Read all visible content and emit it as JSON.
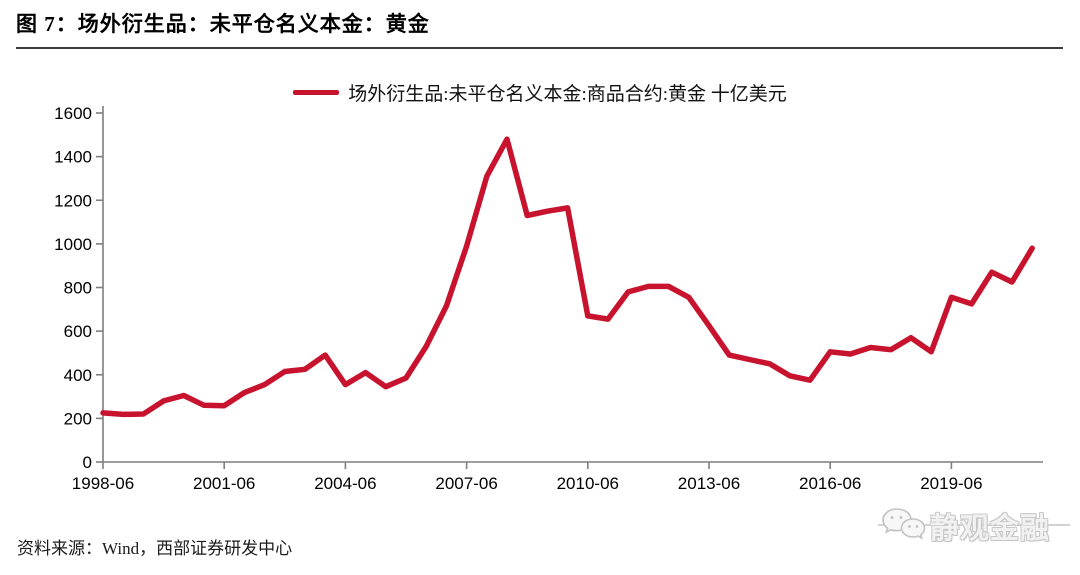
{
  "figure": {
    "title": "图 7：场外衍生品：未平仓名义本金：黄金",
    "source_note": "资料来源：Wind，西部证券研发中心",
    "watermark_text": "静观金融"
  },
  "chart_data": {
    "type": "line",
    "title": "图 7：场外衍生品：未平仓名义本金：黄金",
    "legend": "场外衍生品:未平仓名义本金:商品合约:黄金 十亿美元",
    "legend_position": "top-center",
    "unit": "十亿美元",
    "grid": false,
    "line_color": "#c8132e",
    "ylim": [
      0,
      1600
    ],
    "yticks": [
      0,
      200,
      400,
      600,
      800,
      1000,
      1200,
      1400,
      1600
    ],
    "xtick_labels": [
      "1998-06",
      "2001-06",
      "2004-06",
      "2007-06",
      "2010-06",
      "2013-06",
      "2016-06",
      "2019-06"
    ],
    "xtick_indices": [
      0,
      6,
      12,
      18,
      24,
      30,
      36,
      42
    ],
    "x": [
      "1998-06",
      "1998-12",
      "1999-06",
      "1999-12",
      "2000-06",
      "2000-12",
      "2001-06",
      "2001-12",
      "2002-06",
      "2002-12",
      "2003-06",
      "2003-12",
      "2004-06",
      "2004-12",
      "2005-06",
      "2005-12",
      "2006-06",
      "2006-12",
      "2007-06",
      "2007-12",
      "2008-06",
      "2008-12",
      "2009-06",
      "2009-12",
      "2010-06",
      "2010-12",
      "2011-06",
      "2011-12",
      "2012-06",
      "2012-12",
      "2013-06",
      "2013-12",
      "2014-06",
      "2014-12",
      "2015-06",
      "2015-12",
      "2016-06",
      "2016-12",
      "2017-06",
      "2017-12",
      "2018-06",
      "2018-12",
      "2019-06",
      "2019-12",
      "2020-06",
      "2020-12",
      "2021-06"
    ],
    "series": [
      {
        "name": "场外衍生品:未平仓名义本金:商品合约:黄金",
        "values": [
          225,
          218,
          220,
          280,
          305,
          260,
          258,
          318,
          355,
          415,
          425,
          490,
          355,
          410,
          345,
          385,
          530,
          715,
          990,
          1310,
          1480,
          1130,
          1150,
          1165,
          670,
          655,
          780,
          805,
          805,
          755,
          625,
          490,
          470,
          450,
          395,
          375,
          505,
          495,
          525,
          515,
          570,
          505,
          755,
          725,
          870,
          825,
          980
        ]
      }
    ]
  }
}
